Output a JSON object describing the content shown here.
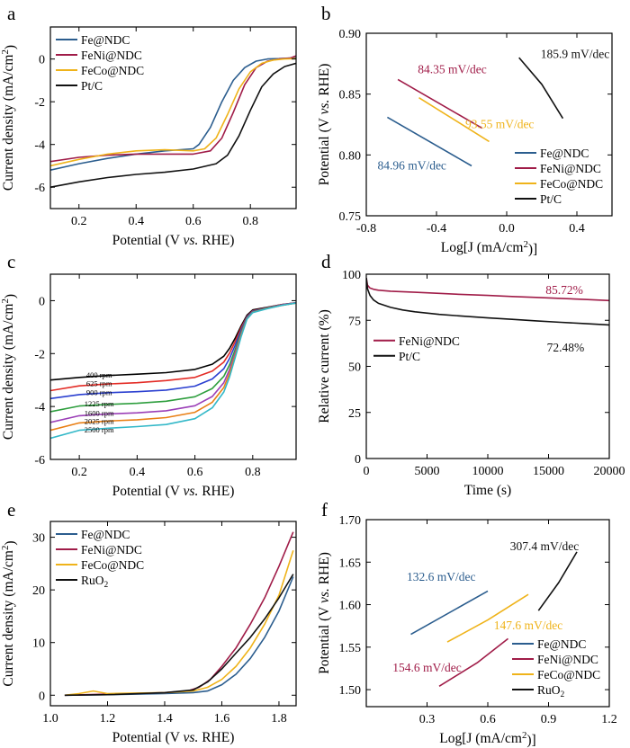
{
  "colors": {
    "fe": "#2b5d8e",
    "feni": "#a01c48",
    "feco": "#efb31a",
    "ptc": "#111111",
    "ruo2": "#111111",
    "axis": "#000000"
  },
  "chart_data": [
    {
      "id": "a",
      "panel_label": "a",
      "type": "line",
      "xlabel": "Potential (V vs. RHE)",
      "ylabel": "Current density (mA/cm2)",
      "xlim": [
        0.1,
        0.96
      ],
      "ylim": [
        -7,
        1.5
      ],
      "xticks": [
        0.2,
        0.4,
        0.6,
        0.8
      ],
      "xtick_labels": [
        "0.2",
        "0.4",
        "0.6",
        "0.8"
      ],
      "yticks": [
        -6,
        -4,
        -2,
        0
      ],
      "ytick_labels": [
        "-6",
        "-4",
        "-2",
        "0"
      ],
      "legend_position": "top-left",
      "series": [
        {
          "name": "Fe@NDC",
          "color_key": "fe",
          "x": [
            0.1,
            0.2,
            0.3,
            0.4,
            0.5,
            0.6,
            0.62,
            0.66,
            0.7,
            0.74,
            0.78,
            0.82,
            0.86,
            0.9,
            0.94,
            0.96
          ],
          "y": [
            -5.2,
            -4.9,
            -4.65,
            -4.45,
            -4.3,
            -4.2,
            -4.0,
            -3.2,
            -2.0,
            -1.0,
            -0.4,
            -0.1,
            0.0,
            0.02,
            0.05,
            0.05
          ]
        },
        {
          "name": "FeNi@NDC",
          "color_key": "feni",
          "x": [
            0.1,
            0.2,
            0.3,
            0.4,
            0.5,
            0.6,
            0.66,
            0.7,
            0.74,
            0.78,
            0.82,
            0.86,
            0.9,
            0.94,
            0.96
          ],
          "y": [
            -4.8,
            -4.6,
            -4.5,
            -4.45,
            -4.45,
            -4.45,
            -4.3,
            -3.7,
            -2.5,
            -1.2,
            -0.4,
            -0.1,
            0.0,
            0.05,
            0.15
          ]
        },
        {
          "name": "FeCo@NDC",
          "color_key": "feco",
          "x": [
            0.1,
            0.2,
            0.3,
            0.4,
            0.5,
            0.6,
            0.64,
            0.68,
            0.72,
            0.76,
            0.8,
            0.84,
            0.88,
            0.92,
            0.96
          ],
          "y": [
            -5.0,
            -4.7,
            -4.45,
            -4.3,
            -4.25,
            -4.3,
            -4.2,
            -3.7,
            -2.6,
            -1.4,
            -0.6,
            -0.2,
            -0.05,
            0.0,
            0.02
          ]
        },
        {
          "name": "Pt/C",
          "color_key": "ptc",
          "x": [
            0.1,
            0.2,
            0.3,
            0.4,
            0.5,
            0.6,
            0.68,
            0.72,
            0.76,
            0.8,
            0.84,
            0.88,
            0.92,
            0.96
          ],
          "y": [
            -6.0,
            -5.75,
            -5.55,
            -5.4,
            -5.3,
            -5.15,
            -4.9,
            -4.5,
            -3.6,
            -2.4,
            -1.3,
            -0.7,
            -0.35,
            -0.2
          ]
        }
      ]
    },
    {
      "id": "b",
      "panel_label": "b",
      "type": "line",
      "xlabel": "Log[J (mA/cm2)]",
      "ylabel": "Potential (V vs. RHE)",
      "xlim": [
        -0.8,
        0.6
      ],
      "ylim": [
        0.75,
        0.9
      ],
      "xticks": [
        -0.8,
        -0.4,
        0.0,
        0.4
      ],
      "xtick_labels": [
        "-0.8",
        "-0.4",
        "0.0",
        "0.4"
      ],
      "yticks": [
        0.75,
        0.8,
        0.85,
        0.9
      ],
      "ytick_labels": [
        "0.75",
        "0.80",
        "0.85",
        "0.90"
      ],
      "legend_position": "bottom-right",
      "series": [
        {
          "name": "Fe@NDC",
          "color_key": "fe",
          "x": [
            -0.68,
            -0.2
          ],
          "y": [
            0.831,
            0.791
          ]
        },
        {
          "name": "FeNi@NDC",
          "color_key": "feni",
          "x": [
            -0.62,
            -0.14
          ],
          "y": [
            0.862,
            0.822
          ]
        },
        {
          "name": "FeCo@NDC",
          "color_key": "feco",
          "x": [
            -0.5,
            -0.1
          ],
          "y": [
            0.847,
            0.811
          ]
        },
        {
          "name": "Pt/C",
          "color_key": "ptc",
          "x": [
            0.07,
            0.2,
            0.32
          ],
          "y": [
            0.88,
            0.858,
            0.83
          ]
        }
      ],
      "annotations": [
        {
          "text": "185.9 mV/dec",
          "x": 0.39,
          "y": 0.8795,
          "color_key": "ptc"
        },
        {
          "text": "84.35 mV/dec",
          "x": -0.31,
          "y": 0.867,
          "color_key": "feni"
        },
        {
          "text": "93.55 mV/dec",
          "x": -0.04,
          "y": 0.822,
          "color_key": "feco"
        },
        {
          "text": "84.96 mV/dec",
          "x": -0.54,
          "y": 0.788,
          "color_key": "fe"
        }
      ]
    },
    {
      "id": "c",
      "panel_label": "c",
      "type": "line",
      "xlabel": "Potential (V vs. RHE)",
      "ylabel": "Current density (mA/cm2)",
      "xlim": [
        0.1,
        0.95
      ],
      "ylim": [
        -6,
        1
      ],
      "xticks": [
        0.2,
        0.4,
        0.6,
        0.8
      ],
      "xtick_labels": [
        "0.2",
        "0.4",
        "0.6",
        "0.8"
      ],
      "yticks": [
        -6,
        -4,
        -2,
        0
      ],
      "ytick_labels": [
        "-6",
        "-4",
        "-2",
        "0"
      ],
      "x": [
        0.1,
        0.2,
        0.3,
        0.4,
        0.5,
        0.6,
        0.66,
        0.7,
        0.72,
        0.74,
        0.76,
        0.78,
        0.8,
        0.85,
        0.9,
        0.95
      ],
      "series": [
        {
          "name": "400 rpm",
          "color": "#000000",
          "y": [
            -3.0,
            -2.9,
            -2.83,
            -2.78,
            -2.72,
            -2.6,
            -2.4,
            -2.1,
            -1.8,
            -1.4,
            -0.95,
            -0.55,
            -0.35,
            -0.25,
            -0.15,
            -0.08
          ]
        },
        {
          "name": "625 rpm",
          "color": "#e32b25",
          "y": [
            -3.4,
            -3.22,
            -3.15,
            -3.1,
            -3.02,
            -2.9,
            -2.66,
            -2.32,
            -1.98,
            -1.52,
            -1.02,
            -0.6,
            -0.38,
            -0.26,
            -0.15,
            -0.08
          ]
        },
        {
          "name": "900 rpm",
          "color": "#2a3fd0",
          "y": [
            -3.7,
            -3.55,
            -3.48,
            -3.44,
            -3.38,
            -3.23,
            -2.96,
            -2.57,
            -2.18,
            -1.66,
            -1.1,
            -0.62,
            -0.4,
            -0.27,
            -0.16,
            -0.08
          ]
        },
        {
          "name": "1225 rpm",
          "color": "#2e9e3e",
          "y": [
            -4.2,
            -3.98,
            -3.92,
            -3.88,
            -3.8,
            -3.63,
            -3.32,
            -2.86,
            -2.42,
            -1.82,
            -1.18,
            -0.65,
            -0.42,
            -0.28,
            -0.17,
            -0.09
          ]
        },
        {
          "name": "1600 rpm",
          "color": "#9b3fb7",
          "y": [
            -4.6,
            -4.35,
            -4.28,
            -4.24,
            -4.16,
            -3.97,
            -3.62,
            -3.1,
            -2.6,
            -1.95,
            -1.25,
            -0.67,
            -0.43,
            -0.29,
            -0.17,
            -0.09
          ]
        },
        {
          "name": "2025 rpm",
          "color": "#e97f14",
          "y": [
            -4.9,
            -4.62,
            -4.55,
            -4.5,
            -4.42,
            -4.22,
            -3.84,
            -3.28,
            -2.74,
            -2.04,
            -1.3,
            -0.69,
            -0.44,
            -0.29,
            -0.18,
            -0.09
          ]
        },
        {
          "name": "2500 rpm",
          "color": "#33b8c8",
          "y": [
            -5.2,
            -4.9,
            -4.82,
            -4.76,
            -4.68,
            -4.46,
            -4.05,
            -3.45,
            -2.88,
            -2.12,
            -1.35,
            -0.7,
            -0.45,
            -0.3,
            -0.18,
            -0.09
          ]
        }
      ],
      "curve_labels": [
        {
          "text": "400 rpm",
          "x": 0.25,
          "y": -2.8
        },
        {
          "text": "625 rpm",
          "x": 0.25,
          "y": -3.13
        },
        {
          "text": "900 rpm",
          "x": 0.25,
          "y": -3.46
        },
        {
          "text": "1225 rpm",
          "x": 0.25,
          "y": -3.9
        },
        {
          "text": "1600 rpm",
          "x": 0.25,
          "y": -4.25
        },
        {
          "text": "2025 rpm",
          "x": 0.25,
          "y": -4.56
        },
        {
          "text": "2500 rpm",
          "x": 0.25,
          "y": -4.88
        }
      ]
    },
    {
      "id": "d",
      "panel_label": "d",
      "type": "line",
      "xlabel": "Time (s)",
      "ylabel": "Relative current (%)",
      "xlim": [
        0,
        20000
      ],
      "ylim": [
        0,
        100
      ],
      "xticks": [
        0,
        5000,
        10000,
        15000,
        20000
      ],
      "xtick_labels": [
        "0",
        "5000",
        "10000",
        "15000",
        "20000"
      ],
      "yticks": [
        0,
        25,
        50,
        75,
        100
      ],
      "ytick_labels": [
        "0",
        "25",
        "50",
        "75",
        "100"
      ],
      "legend_position": "center-left",
      "series": [
        {
          "name": "FeNi@NDC",
          "color_key": "feni",
          "x": [
            0,
            100,
            300,
            600,
            1000,
            2000,
            4000,
            6000,
            8000,
            10000,
            12000,
            14000,
            16000,
            18000,
            20000
          ],
          "y": [
            98,
            94,
            92.5,
            91.8,
            91.3,
            90.8,
            90.2,
            89.6,
            89,
            88.5,
            87.9,
            87.4,
            86.9,
            86.3,
            85.72
          ]
        },
        {
          "name": "Pt/C",
          "color_key": "ptc",
          "x": [
            0,
            100,
            300,
            600,
            1000,
            2000,
            3000,
            4000,
            6000,
            8000,
            10000,
            12000,
            14000,
            16000,
            18000,
            20000
          ],
          "y": [
            98,
            92,
            88.5,
            86,
            84.2,
            82,
            80.6,
            79.6,
            78.2,
            77.2,
            76.3,
            75.5,
            74.7,
            73.9,
            73.2,
            72.48
          ]
        }
      ],
      "annotations": [
        {
          "text": "85.72%",
          "x": 16300,
          "y": 89.2,
          "color_key": "feni"
        },
        {
          "text": "72.48%",
          "x": 16400,
          "y": 58,
          "color_key": "ptc"
        }
      ]
    },
    {
      "id": "e",
      "panel_label": "e",
      "type": "line",
      "xlabel": "Potential (V vs. RHE)",
      "ylabel": "Current density (mA/cm2)",
      "xlim": [
        1.0,
        1.86
      ],
      "ylim": [
        -2,
        33
      ],
      "xticks": [
        1.0,
        1.2,
        1.4,
        1.6,
        1.8
      ],
      "xtick_labels": [
        "1.0",
        "1.2",
        "1.4",
        "1.6",
        "1.8"
      ],
      "yticks": [
        0,
        10,
        20,
        30
      ],
      "ytick_labels": [
        "0",
        "10",
        "20",
        "30"
      ],
      "legend_position": "top-left",
      "series": [
        {
          "name": "Fe@NDC",
          "color_key": "fe",
          "x": [
            1.05,
            1.2,
            1.4,
            1.5,
            1.55,
            1.6,
            1.65,
            1.7,
            1.75,
            1.8,
            1.85
          ],
          "y": [
            0,
            0.1,
            0.3,
            0.5,
            0.8,
            2.0,
            4.0,
            7.0,
            11.0,
            16.0,
            22.5
          ]
        },
        {
          "name": "FeNi@NDC",
          "color_key": "feni",
          "x": [
            1.05,
            1.2,
            1.4,
            1.48,
            1.52,
            1.56,
            1.6,
            1.65,
            1.7,
            1.75,
            1.8,
            1.85
          ],
          "y": [
            0,
            0.2,
            0.5,
            0.8,
            1.5,
            3.0,
            5.5,
            9.0,
            13.5,
            18.5,
            24.5,
            31.0
          ]
        },
        {
          "name": "FeCo@NDC",
          "color_key": "feco",
          "x": [
            1.05,
            1.1,
            1.15,
            1.2,
            1.3,
            1.4,
            1.5,
            1.55,
            1.6,
            1.65,
            1.7,
            1.75,
            1.8,
            1.85
          ],
          "y": [
            0,
            0.3,
            0.8,
            0.3,
            0.4,
            0.5,
            0.8,
            1.5,
            3.0,
            5.5,
            9.0,
            13.5,
            19.0,
            27.5
          ]
        },
        {
          "name": "RuO2",
          "color_key": "ruo2",
          "x": [
            1.05,
            1.2,
            1.4,
            1.5,
            1.55,
            1.6,
            1.65,
            1.7,
            1.75,
            1.8,
            1.85
          ],
          "y": [
            0,
            0.1,
            0.5,
            1.0,
            2.5,
            5.0,
            8.0,
            11.0,
            14.5,
            18.5,
            23.0
          ]
        }
      ]
    },
    {
      "id": "f",
      "panel_label": "f",
      "type": "line",
      "xlabel": "Log[J (mA/cm2)]",
      "ylabel": "Potential (V vs. RHE)",
      "xlim": [
        0.0,
        1.2
      ],
      "ylim": [
        1.48,
        1.7
      ],
      "xticks": [
        0.3,
        0.6,
        0.9,
        1.2
      ],
      "xtick_labels": [
        "0.3",
        "0.6",
        "0.9",
        "1.2"
      ],
      "yticks": [
        1.5,
        1.55,
        1.6,
        1.65,
        1.7
      ],
      "ytick_labels": [
        "1.50",
        "1.55",
        "1.60",
        "1.65",
        "1.70"
      ],
      "legend_position": "bottom-right",
      "series": [
        {
          "name": "Fe@NDC",
          "color_key": "fe",
          "x": [
            0.22,
            0.6
          ],
          "y": [
            1.565,
            1.616
          ]
        },
        {
          "name": "FeNi@NDC",
          "color_key": "feni",
          "x": [
            0.36,
            0.55,
            0.7
          ],
          "y": [
            1.504,
            1.532,
            1.56
          ]
        },
        {
          "name": "FeCo@NDC",
          "color_key": "feco",
          "x": [
            0.4,
            0.6,
            0.8
          ],
          "y": [
            1.556,
            1.582,
            1.612
          ]
        },
        {
          "name": "RuO2",
          "color_key": "ruo2",
          "x": [
            0.85,
            0.95,
            1.04
          ],
          "y": [
            1.593,
            1.626,
            1.662
          ]
        }
      ],
      "annotations": [
        {
          "text": "307.4 mV/dec",
          "x": 0.88,
          "y": 1.664,
          "color_key": "ruo2"
        },
        {
          "text": "132.6 mV/dec",
          "x": 0.37,
          "y": 1.628,
          "color_key": "fe"
        },
        {
          "text": "147.6 mV/dec",
          "x": 0.8,
          "y": 1.571,
          "color_key": "feco"
        },
        {
          "text": "154.6 mV/dec",
          "x": 0.3,
          "y": 1.521,
          "color_key": "feni"
        }
      ]
    }
  ]
}
